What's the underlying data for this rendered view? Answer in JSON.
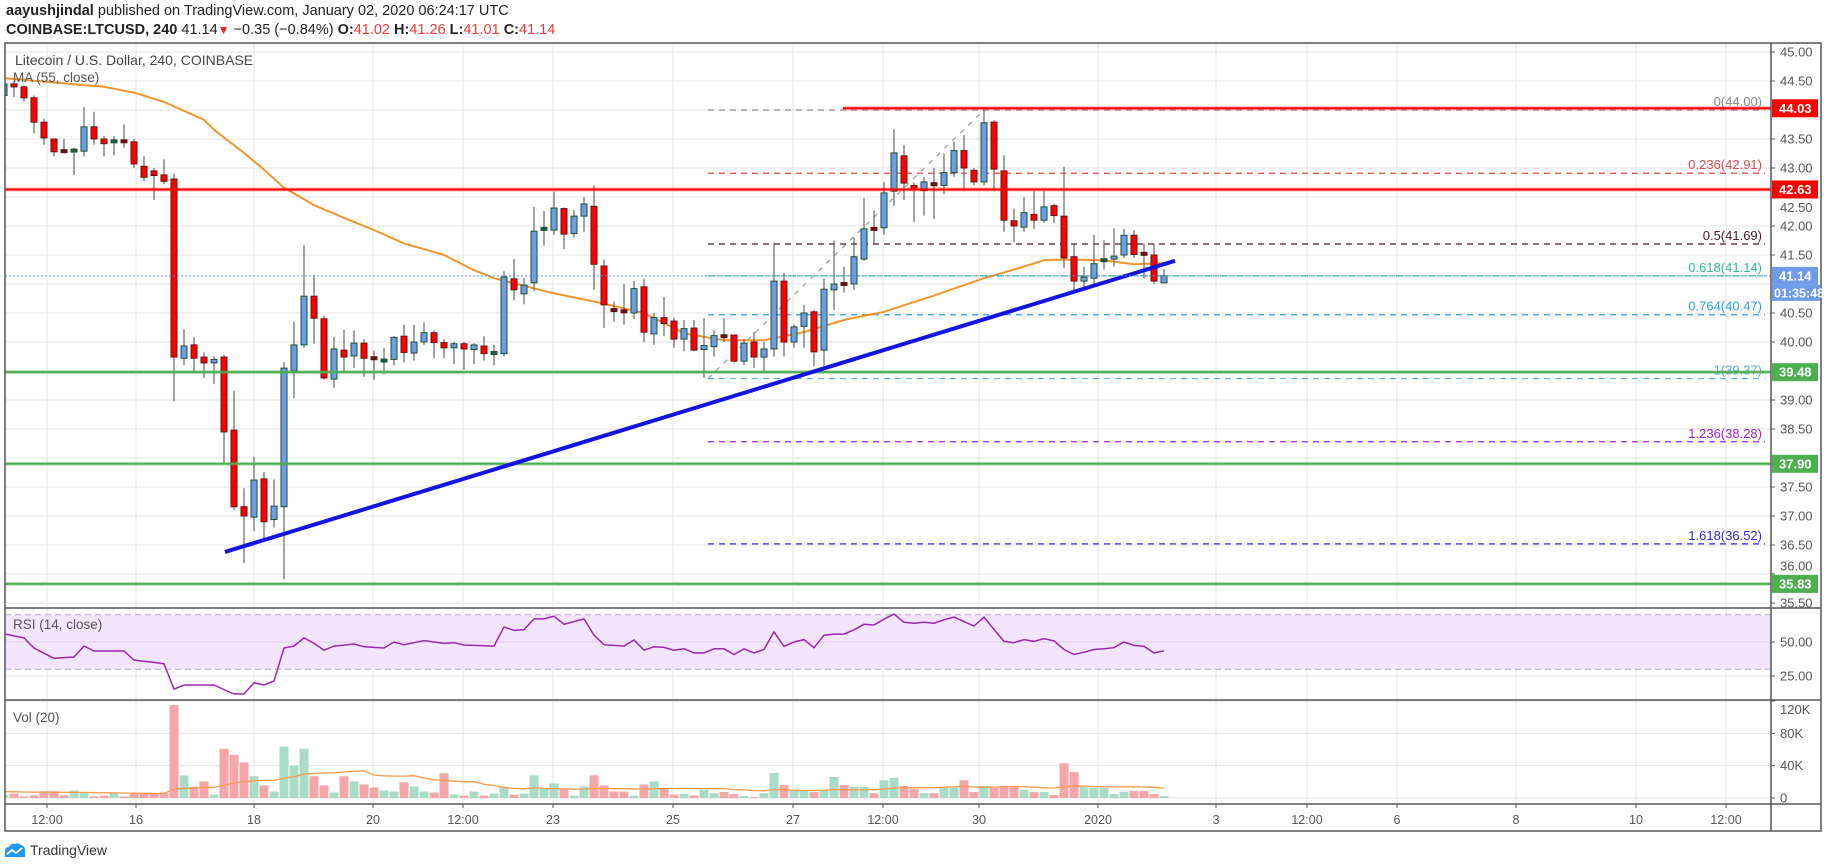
{
  "header": {
    "author": "aayushjindal",
    "published": " published on TradingView.com, January 02, 2020 06:24:17 UTC",
    "symbol": "COINBASE:LTCUSD, 240",
    "last": "41.14",
    "change_icon": "triangle-down-icon",
    "change": "−0.35 (−0.84%)",
    "o_label": "O:",
    "o": "41.02",
    "h_label": "H:",
    "h": "41.26",
    "l_label": "L:",
    "l": "41.01",
    "c_label": "C:",
    "c": "41.14"
  },
  "legend": {
    "title": "Litecoin / U.S. Dollar, 240, COINBASE",
    "ma": "MA (55, close)",
    "rsi": "RSI (14, close)",
    "vol": "Vol (20)"
  },
  "price_axis": [
    "45.00",
    "44.50",
    "43.50",
    "43.00",
    "42.50",
    "42.00",
    "41.50",
    "40.50",
    "40.00",
    "39.00",
    "38.50",
    "37.50",
    "37.00",
    "36.50",
    "36.00",
    "35.50"
  ],
  "price_tags": [
    {
      "value": "44.03",
      "color": "#ff0000"
    },
    {
      "value": "42.63",
      "color": "#ff0000"
    },
    {
      "value": "41.14",
      "color": "#6f9be8"
    },
    {
      "value": "39.48",
      "color": "#4caf50"
    },
    {
      "value": "37.90",
      "color": "#4caf50"
    },
    {
      "value": "35.83",
      "color": "#4caf50"
    }
  ],
  "countdown": "01:35:48",
  "time_axis": [
    "12:00",
    "16",
    "18",
    "20",
    "12:00",
    "23",
    "25",
    "27",
    "12:00",
    "30",
    "2020",
    "3",
    "12:00",
    "6",
    "8",
    "10",
    "12:00"
  ],
  "fib": [
    {
      "label": "0(44.00)",
      "level": 44.0,
      "color": "#8a8a8a"
    },
    {
      "label": "0.236(42.91)",
      "level": 42.91,
      "color": "#e04848"
    },
    {
      "label": "0.5(41.69)",
      "level": 41.69,
      "color": "#4a1a2e"
    },
    {
      "label": "0.618(41.14)",
      "level": 41.14,
      "color": "#2fbf8a"
    },
    {
      "label": "0.764(40.47)",
      "level": 40.47,
      "color": "#2a9de0"
    },
    {
      "label": "1(39.37)",
      "level": 39.37,
      "color": "#5aaee6"
    },
    {
      "label": "1.236(38.28)",
      "level": 38.28,
      "color": "#a020e0"
    },
    {
      "label": "1.618(36.52)",
      "level": 36.52,
      "color": "#2b2be0"
    }
  ],
  "rsi_axis": [
    "50.00",
    "25.00"
  ],
  "vol_axis": [
    "120K",
    "80K",
    "40K",
    "0"
  ],
  "brand": "TradingView",
  "chart_data": {
    "type": "candlestick",
    "title": "Litecoin / U.S. Dollar, 240, COINBASE",
    "interval": "240",
    "ylim": [
      35.5,
      45.0
    ],
    "colors": {
      "up": "#6b9de8",
      "up_border": "#1d4f33",
      "down": "#ff0000",
      "down_border": "#6a1010",
      "ma": "#f0952f",
      "rsi": "#9c27b0",
      "vol_up": "#a8dcc6",
      "vol_down": "#f4a6ab",
      "vol_ma": "#ff9a4a",
      "trendline": "#1414e0",
      "last_price": "#5b8def"
    },
    "candles_ohlc": [
      [
        44.25,
        44.5,
        44.2,
        44.45
      ],
      [
        44.45,
        44.5,
        44.22,
        44.4
      ],
      [
        44.4,
        44.42,
        44.15,
        44.21
      ],
      [
        44.21,
        44.25,
        43.6,
        43.79
      ],
      [
        43.79,
        43.85,
        43.4,
        43.52
      ],
      [
        43.5,
        43.5,
        43.2,
        43.28
      ],
      [
        43.29,
        43.5,
        43.25,
        43.27
      ],
      [
        43.27,
        43.35,
        42.88,
        43.3
      ],
      [
        43.29,
        44.05,
        43.2,
        43.71
      ],
      [
        43.71,
        43.97,
        43.4,
        43.5
      ],
      [
        43.5,
        43.55,
        43.2,
        43.42
      ],
      [
        43.42,
        43.55,
        43.22,
        43.46
      ],
      [
        43.46,
        43.75,
        43.35,
        43.42
      ],
      [
        43.45,
        43.5,
        43.0,
        43.07
      ],
      [
        43.03,
        43.2,
        42.77,
        42.84
      ],
      [
        42.95,
        43.0,
        42.45,
        42.87
      ],
      [
        42.88,
        43.15,
        42.72,
        42.77
      ],
      [
        42.81,
        42.9,
        38.98,
        39.74
      ],
      [
        39.72,
        40.22,
        39.6,
        39.93
      ],
      [
        39.95,
        40.08,
        39.5,
        39.72
      ],
      [
        39.74,
        39.82,
        39.38,
        39.64
      ],
      [
        39.64,
        39.75,
        39.28,
        39.7
      ],
      [
        39.74,
        39.78,
        37.9,
        38.45
      ],
      [
        38.48,
        39.16,
        37.1,
        37.16
      ],
      [
        37.16,
        37.48,
        36.19,
        37.0
      ],
      [
        36.98,
        38.02,
        36.74,
        37.62
      ],
      [
        37.64,
        37.76,
        36.6,
        36.9
      ],
      [
        36.94,
        37.63,
        36.8,
        37.17
      ],
      [
        37.16,
        39.65,
        35.91,
        39.55
      ],
      [
        39.5,
        40.35,
        39.03,
        39.95
      ],
      [
        39.95,
        41.67,
        39.9,
        40.79
      ],
      [
        40.79,
        41.16,
        39.97,
        40.41
      ],
      [
        40.4,
        40.45,
        39.35,
        39.38
      ],
      [
        39.36,
        40.09,
        39.21,
        39.88
      ],
      [
        39.86,
        40.21,
        39.5,
        39.74
      ],
      [
        39.76,
        40.2,
        39.55,
        39.98
      ],
      [
        39.98,
        40.05,
        39.4,
        39.72
      ],
      [
        39.72,
        39.85,
        39.35,
        39.69
      ],
      [
        39.66,
        39.9,
        39.45,
        39.68
      ],
      [
        39.7,
        40.1,
        39.6,
        40.08
      ],
      [
        40.1,
        40.3,
        39.65,
        39.82
      ],
      [
        39.81,
        40.3,
        39.68,
        40.0
      ],
      [
        40.0,
        40.34,
        39.95,
        40.16
      ],
      [
        40.16,
        40.2,
        39.72,
        39.99
      ],
      [
        39.99,
        40.05,
        39.72,
        39.9
      ],
      [
        39.9,
        40.0,
        39.62,
        39.97
      ],
      [
        39.97,
        40.0,
        39.52,
        39.88
      ],
      [
        39.87,
        39.98,
        39.62,
        39.95
      ],
      [
        39.93,
        40.1,
        39.68,
        39.8
      ],
      [
        39.8,
        39.95,
        39.6,
        39.81
      ],
      [
        39.8,
        41.22,
        39.75,
        41.12
      ],
      [
        41.09,
        41.43,
        40.72,
        40.9
      ],
      [
        40.83,
        41.1,
        40.65,
        40.98
      ],
      [
        41.02,
        42.33,
        40.88,
        41.91
      ],
      [
        41.93,
        42.26,
        41.66,
        41.95
      ],
      [
        41.93,
        42.59,
        41.85,
        42.31
      ],
      [
        42.3,
        42.32,
        41.6,
        41.86
      ],
      [
        41.87,
        42.28,
        41.8,
        42.17
      ],
      [
        42.17,
        42.5,
        41.9,
        42.38
      ],
      [
        42.34,
        42.7,
        40.9,
        41.34
      ],
      [
        41.31,
        41.42,
        40.24,
        40.64
      ],
      [
        40.55,
        40.7,
        40.35,
        40.53
      ],
      [
        40.53,
        41.0,
        40.3,
        40.52
      ],
      [
        40.5,
        41.05,
        40.4,
        40.92
      ],
      [
        40.95,
        41.09,
        40.0,
        40.17
      ],
      [
        40.14,
        40.5,
        39.95,
        40.42
      ],
      [
        40.42,
        40.78,
        40.1,
        40.32
      ],
      [
        40.36,
        40.42,
        39.9,
        40.05
      ],
      [
        40.05,
        40.38,
        39.84,
        40.23
      ],
      [
        40.24,
        40.38,
        39.84,
        39.86
      ],
      [
        39.87,
        40.41,
        39.38,
        39.94
      ],
      [
        39.92,
        40.2,
        39.75,
        40.11
      ],
      [
        40.1,
        40.41,
        40.0,
        40.09
      ],
      [
        40.12,
        40.13,
        39.65,
        39.67
      ],
      [
        39.67,
        40.05,
        39.6,
        39.98
      ],
      [
        40.0,
        40.18,
        39.55,
        39.74
      ],
      [
        39.74,
        40.0,
        39.5,
        39.88
      ],
      [
        39.88,
        41.71,
        39.75,
        41.05
      ],
      [
        41.05,
        41.19,
        39.75,
        40.0
      ],
      [
        40.0,
        40.3,
        39.9,
        40.26
      ],
      [
        40.27,
        40.64,
        39.9,
        40.5
      ],
      [
        40.52,
        40.55,
        39.58,
        39.83
      ],
      [
        39.86,
        41.1,
        39.59,
        40.91
      ],
      [
        40.9,
        41.75,
        40.55,
        41.0
      ],
      [
        41.0,
        41.3,
        40.85,
        40.98
      ],
      [
        41.0,
        41.8,
        40.9,
        41.47
      ],
      [
        41.43,
        42.48,
        41.4,
        41.95
      ],
      [
        41.95,
        42.27,
        41.7,
        41.93
      ],
      [
        41.97,
        42.76,
        41.85,
        42.57
      ],
      [
        42.6,
        43.67,
        42.35,
        43.26
      ],
      [
        43.21,
        43.4,
        42.45,
        42.74
      ],
      [
        42.7,
        42.75,
        42.07,
        42.62
      ],
      [
        42.61,
        42.85,
        42.18,
        42.76
      ],
      [
        42.72,
        43.0,
        42.12,
        42.68
      ],
      [
        42.7,
        43.25,
        42.55,
        42.92
      ],
      [
        42.92,
        43.45,
        42.85,
        43.3
      ],
      [
        43.3,
        43.57,
        42.6,
        43.0
      ],
      [
        42.96,
        43.0,
        42.7,
        42.76
      ],
      [
        42.76,
        44.03,
        42.7,
        43.78
      ],
      [
        43.79,
        43.82,
        42.6,
        42.98
      ],
      [
        42.95,
        43.22,
        41.9,
        42.1
      ],
      [
        42.09,
        42.3,
        41.72,
        42.0
      ],
      [
        41.98,
        42.5,
        41.9,
        42.23
      ],
      [
        42.2,
        42.6,
        41.95,
        42.1
      ],
      [
        42.1,
        42.6,
        42.05,
        42.33
      ],
      [
        42.35,
        42.38,
        42.05,
        42.18
      ],
      [
        42.17,
        43.02,
        41.28,
        41.45
      ],
      [
        41.47,
        41.7,
        40.9,
        41.05
      ],
      [
        41.05,
        41.3,
        40.95,
        41.12
      ],
      [
        41.1,
        41.85,
        40.98,
        41.35
      ],
      [
        41.38,
        41.75,
        41.25,
        41.41
      ],
      [
        41.43,
        41.96,
        41.3,
        41.48
      ],
      [
        41.5,
        41.95,
        41.45,
        41.84
      ],
      [
        41.84,
        41.93,
        41.45,
        41.51
      ],
      [
        41.52,
        41.7,
        41.1,
        41.51
      ],
      [
        41.5,
        41.7,
        41.0,
        41.05
      ],
      [
        41.02,
        41.26,
        41.01,
        41.14
      ]
    ],
    "volume_k": [
      4,
      5.5,
      2,
      3,
      8.4,
      8.4,
      3,
      9.3,
      7,
      2,
      3,
      7,
      2,
      6.3,
      6.3,
      5,
      6.3,
      115,
      28,
      14,
      20.6,
      4.2,
      61,
      53.5,
      44,
      27,
      15.6,
      8,
      63.6,
      40,
      61,
      27,
      15.6,
      6.7,
      27,
      20.6,
      16.8,
      13,
      9.3,
      8,
      19.4,
      14.3,
      8,
      6.7,
      30.7,
      4.2,
      3,
      8,
      3,
      5.5,
      14,
      4.2,
      5.5,
      28,
      12.6,
      18,
      10.5,
      3,
      14.3,
      28,
      15.6,
      8,
      8,
      3,
      16.8,
      20.6,
      11.8,
      4.2,
      5,
      3,
      10,
      6,
      7.4,
      5,
      2.5,
      1.2,
      6,
      31,
      16,
      10,
      10,
      7.4,
      10,
      26,
      16,
      13.6,
      13.6,
      6,
      22,
      25,
      15,
      11,
      6,
      6,
      13.6,
      12.4,
      22,
      7.4,
      15,
      12.4,
      15,
      15,
      10,
      7.4,
      7.4,
      3.7,
      43,
      32,
      15,
      12.4,
      12.4,
      5,
      7.4,
      8.7,
      8.7,
      5,
      2.5
    ],
    "vol_ylim": [
      0,
      120
    ],
    "ma55_points": [
      [
        0,
        44.55
      ],
      [
        10,
        44.4
      ],
      [
        13,
        44.3
      ],
      [
        16,
        44.14
      ],
      [
        20,
        43.83
      ],
      [
        21,
        43.66
      ],
      [
        24,
        43.26
      ],
      [
        26,
        42.97
      ],
      [
        28,
        42.66
      ],
      [
        31,
        42.36
      ],
      [
        34,
        42.14
      ],
      [
        37,
        41.93
      ],
      [
        40,
        41.7
      ],
      [
        44,
        41.5
      ],
      [
        47,
        41.24
      ],
      [
        49,
        41.1
      ],
      [
        55,
        40.84
      ],
      [
        60,
        40.66
      ],
      [
        64,
        40.5
      ],
      [
        68,
        40.15
      ],
      [
        72,
        40.03
      ],
      [
        76,
        40.03
      ],
      [
        80,
        40.17
      ],
      [
        84,
        40.38
      ],
      [
        88,
        40.52
      ],
      [
        93,
        40.8
      ],
      [
        98,
        41.1
      ],
      [
        100,
        41.2
      ],
      [
        102,
        41.3
      ],
      [
        104,
        41.41
      ],
      [
        106,
        41.42
      ],
      [
        110,
        41.41
      ],
      [
        113,
        41.34
      ],
      [
        116,
        41.36
      ]
    ],
    "rsi_points": [
      [
        0,
        56
      ],
      [
        2,
        53
      ],
      [
        3,
        45.6
      ],
      [
        5,
        38
      ],
      [
        7,
        39
      ],
      [
        8,
        47
      ],
      [
        9,
        43.4
      ],
      [
        12,
        43.4
      ],
      [
        13,
        36.8
      ],
      [
        15,
        35
      ],
      [
        16,
        34
      ],
      [
        17,
        15.4
      ],
      [
        18,
        18.4
      ],
      [
        21,
        18.4
      ],
      [
        23,
        11.8
      ],
      [
        24,
        11.8
      ],
      [
        25,
        20
      ],
      [
        26,
        18.4
      ],
      [
        27,
        21.3
      ],
      [
        28,
        45.6
      ],
      [
        29,
        47
      ],
      [
        30,
        53
      ],
      [
        31,
        49
      ],
      [
        32,
        44
      ],
      [
        33,
        47
      ],
      [
        35,
        48.5
      ],
      [
        36,
        46.5
      ],
      [
        38,
        45.6
      ],
      [
        39,
        50
      ],
      [
        40,
        48
      ],
      [
        42,
        51
      ],
      [
        44,
        49
      ],
      [
        45,
        49.5
      ],
      [
        46,
        47.8
      ],
      [
        49,
        47
      ],
      [
        50,
        61
      ],
      [
        51,
        58.5
      ],
      [
        52,
        59
      ],
      [
        53,
        67
      ],
      [
        54,
        67
      ],
      [
        55,
        69
      ],
      [
        56,
        63
      ],
      [
        58,
        67
      ],
      [
        59,
        55
      ],
      [
        60,
        48
      ],
      [
        62,
        47
      ],
      [
        63,
        51.5
      ],
      [
        64,
        44
      ],
      [
        65,
        46.5
      ],
      [
        66,
        46
      ],
      [
        67,
        44
      ],
      [
        68,
        45
      ],
      [
        69,
        42
      ],
      [
        70,
        42
      ],
      [
        71,
        45
      ],
      [
        72,
        45
      ],
      [
        73,
        40.8
      ],
      [
        74,
        45
      ],
      [
        75,
        42
      ],
      [
        76,
        44.5
      ],
      [
        77,
        57.5
      ],
      [
        78,
        46.8
      ],
      [
        79,
        50
      ],
      [
        80,
        51.8
      ],
      [
        81,
        45.8
      ],
      [
        82,
        55
      ],
      [
        83,
        55.8
      ],
      [
        84,
        55.8
      ],
      [
        85,
        59
      ],
      [
        86,
        63
      ],
      [
        87,
        62.5
      ],
      [
        88,
        66.8
      ],
      [
        89,
        70.5
      ],
      [
        90,
        64.5
      ],
      [
        91,
        63.8
      ],
      [
        92,
        64.5
      ],
      [
        93,
        63.8
      ],
      [
        94,
        66.3
      ],
      [
        95,
        68.3
      ],
      [
        96,
        65
      ],
      [
        97,
        61.8
      ],
      [
        98,
        68.3
      ],
      [
        99,
        59.3
      ],
      [
        100,
        50.5
      ],
      [
        101,
        49.5
      ],
      [
        102,
        51.8
      ],
      [
        103,
        50.5
      ],
      [
        104,
        52.5
      ],
      [
        105,
        50.8
      ],
      [
        106,
        44.5
      ],
      [
        107,
        40.8
      ],
      [
        108,
        42.5
      ],
      [
        109,
        44.5
      ],
      [
        110,
        45
      ],
      [
        111,
        45.8
      ],
      [
        112,
        50
      ],
      [
        113,
        47.5
      ],
      [
        114,
        46.8
      ],
      [
        115,
        42
      ],
      [
        116,
        43.5
      ]
    ],
    "rsi_bands": [
      30,
      70
    ],
    "horizontal_lines": [
      {
        "price": 44.03,
        "color": "#ff0000",
        "from_index": 84
      },
      {
        "price": 42.63,
        "color": "#ff0000",
        "from_index": 0
      },
      {
        "price": 39.48,
        "color": "#4caf50",
        "from_index": 0
      },
      {
        "price": 37.9,
        "color": "#4caf50",
        "from_index": 0
      },
      {
        "price": 35.83,
        "color": "#4caf50",
        "from_index": 0
      }
    ],
    "trendline": {
      "start": [
        22.1,
        36.38
      ],
      "end": [
        117.1,
        41.4
      ]
    },
    "fib_anchor": {
      "start": [
        70.4,
        39.37
      ],
      "end": [
        98,
        44.0
      ]
    },
    "last_price": 41.14
  }
}
